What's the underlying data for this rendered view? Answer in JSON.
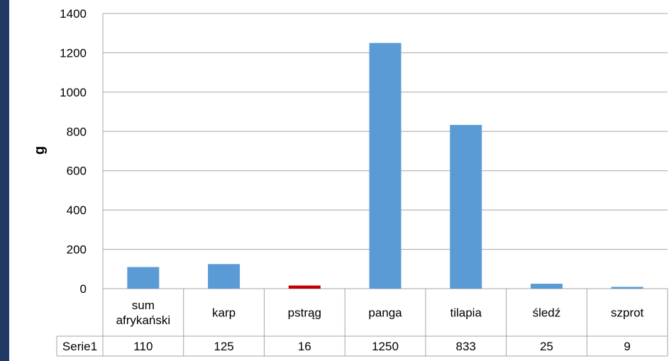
{
  "colors": {
    "left_bar": "#1f3864",
    "bar_default": "#5b9bd5",
    "bar_highlight": "#c00000",
    "grid": "#a6a6a6"
  },
  "chart_data": {
    "type": "bar",
    "categories": [
      [
        "sum",
        "afrykański"
      ],
      [
        "karp"
      ],
      [
        "pstrąg"
      ],
      [
        "panga"
      ],
      [
        "tilapia"
      ],
      [
        "śledź"
      ],
      [
        "szprot"
      ]
    ],
    "series": [
      {
        "name": "Serie1",
        "values": [
          110,
          125,
          16,
          1250,
          833,
          25,
          9
        ]
      }
    ],
    "highlight_index": 2,
    "ylabel": "g",
    "ylim": [
      0,
      1400
    ],
    "yticks": [
      0,
      200,
      400,
      600,
      800,
      1000,
      1200,
      1400
    ],
    "grid": true,
    "data_table": true
  }
}
